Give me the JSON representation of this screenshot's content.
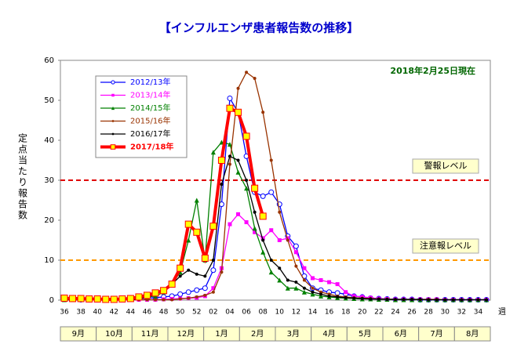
{
  "chart_data": {
    "type": "line",
    "title": "【インフルエンザ患者報告数の推移】",
    "annotation": "2018年2月25日現在",
    "y_label": "定点当たり報告数",
    "x_unit_label": "週",
    "categories": [
      "36",
      null,
      "38",
      null,
      "40",
      null,
      "42",
      null,
      "44",
      null,
      "46",
      null,
      "48",
      null,
      "50",
      null,
      "52",
      null,
      "02",
      null,
      "04",
      null,
      "06",
      null,
      "08",
      null,
      "10",
      null,
      "12",
      null,
      "14",
      null,
      "16",
      null,
      "18",
      null,
      "20",
      null,
      "22",
      null,
      "24",
      null,
      "26",
      null,
      "28",
      null,
      "30",
      null,
      "32",
      null,
      "34",
      null
    ],
    "months": [
      "9月",
      "10月",
      "11月",
      "12月",
      "1月",
      "2月",
      "3月",
      "4月",
      "5月",
      "6月",
      "7月",
      "8月"
    ],
    "ylim": [
      0,
      60
    ],
    "yticks": [
      0,
      10,
      20,
      30,
      40,
      50,
      60
    ],
    "reference_lines": [
      {
        "value": 30,
        "label": "警報レベル",
        "color": "#e00000"
      },
      {
        "value": 10,
        "label": "注意報レベル",
        "color": "#ff9900"
      }
    ],
    "series": [
      {
        "name": "2012/13年",
        "color": "#0000ff",
        "marker": "circle-open",
        "line_width": 1.3,
        "values": [
          0.2,
          0.2,
          0.1,
          0.1,
          0.1,
          0.1,
          0.2,
          0.2,
          0.3,
          0.4,
          0.5,
          0.6,
          0.8,
          1,
          1.5,
          2,
          2.5,
          3,
          7.5,
          24,
          50.5,
          47,
          36,
          27,
          26,
          27,
          24,
          16,
          13.5,
          6,
          3,
          2.5,
          2,
          1.8,
          1.5,
          1,
          0.8,
          0.5,
          0.4,
          0.3,
          0.2,
          0.2,
          0.2,
          0.1,
          0.1,
          0.1,
          0.1,
          0.1,
          0.1,
          0.1,
          0.1,
          0.1
        ]
      },
      {
        "name": "2013/14年",
        "color": "#ff00ff",
        "marker": "square",
        "line_width": 1.3,
        "values": [
          0.1,
          0.1,
          0.1,
          0.1,
          0.1,
          0.1,
          0.1,
          0.1,
          0.1,
          0.1,
          0.1,
          0.1,
          0.2,
          0.3,
          0.4,
          0.5,
          0.6,
          1,
          3,
          8,
          19,
          21.5,
          19.5,
          17,
          15.5,
          17.5,
          15,
          15.5,
          12,
          8,
          5.5,
          5,
          4.5,
          4,
          2,
          1,
          0.8,
          0.6,
          0.4,
          0.3,
          0.2,
          0.2,
          0.2,
          0.2,
          0.2,
          0.2,
          0.1,
          0.1,
          0.1,
          0.1,
          0.1,
          0.1
        ]
      },
      {
        "name": "2014/15年",
        "color": "#008000",
        "marker": "triangle",
        "line_width": 1.3,
        "values": [
          0.1,
          0.1,
          0.1,
          0.1,
          0.1,
          0.1,
          0.2,
          0.3,
          0.4,
          0.6,
          0.8,
          1,
          2,
          4,
          7,
          15,
          25,
          10,
          37,
          39.5,
          39,
          32,
          28,
          18,
          12,
          7,
          5,
          3,
          3,
          2,
          1.5,
          1,
          0.8,
          0.6,
          0.5,
          0.4,
          0.3,
          0.3,
          0.2,
          0.2,
          0.1,
          0.1,
          0.1,
          0.1,
          0.1,
          0.1,
          0.1,
          0.1,
          0.1,
          0.1,
          0.1,
          0.1
        ]
      },
      {
        "name": "2015/16年",
        "color": "#993300",
        "marker": "dot",
        "line_width": 1.3,
        "values": [
          0.1,
          0.1,
          0.1,
          0.1,
          0.1,
          0.1,
          0.1,
          0.1,
          0.1,
          0.1,
          0.1,
          0.1,
          0.1,
          0.1,
          0.3,
          0.5,
          0.8,
          1.2,
          2,
          7,
          34,
          53,
          57,
          55.5,
          47,
          35,
          22,
          15,
          8.5,
          5,
          3,
          2,
          1.5,
          1,
          0.8,
          0.6,
          0.5,
          0.4,
          0.3,
          0.3,
          0.2,
          0.2,
          0.2,
          0.2,
          0.2,
          0.2,
          0.1,
          0.1,
          0.1,
          0.1,
          0.1,
          0.1
        ]
      },
      {
        "name": "2016/17年",
        "color": "#000000",
        "marker": "dot",
        "line_width": 1.3,
        "values": [
          0.1,
          0.1,
          0.1,
          0.1,
          0.1,
          0.1,
          0.1,
          0.1,
          0.2,
          0.3,
          0.8,
          1.5,
          2.5,
          4,
          6,
          7.5,
          6.5,
          6,
          10,
          29,
          36,
          35,
          30,
          22,
          15,
          10,
          8,
          5,
          4.5,
          3,
          2,
          1.5,
          1,
          0.8,
          0.6,
          0.5,
          0.4,
          0.3,
          0.3,
          0.2,
          0.2,
          0.2,
          0.2,
          0.2,
          0.1,
          0.1,
          0.1,
          0.1,
          0.1,
          0.1,
          0.1,
          0.1
        ]
      },
      {
        "name": "2017/18年",
        "color": "#ff0000",
        "marker": "square",
        "marker_fill": "#ffff00",
        "line_width": 4,
        "values": [
          0.5,
          0.4,
          0.4,
          0.3,
          0.3,
          0.2,
          0.2,
          0.3,
          0.4,
          0.8,
          1.2,
          1.8,
          2.4,
          4,
          8,
          19,
          17,
          10.5,
          18.5,
          35,
          48,
          47,
          41,
          28,
          21,
          null,
          null,
          null,
          null,
          null,
          null,
          null,
          null,
          null,
          null,
          null,
          null,
          null,
          null,
          null,
          null,
          null,
          null,
          null,
          null,
          null,
          null,
          null,
          null,
          null,
          null,
          null
        ]
      }
    ]
  }
}
